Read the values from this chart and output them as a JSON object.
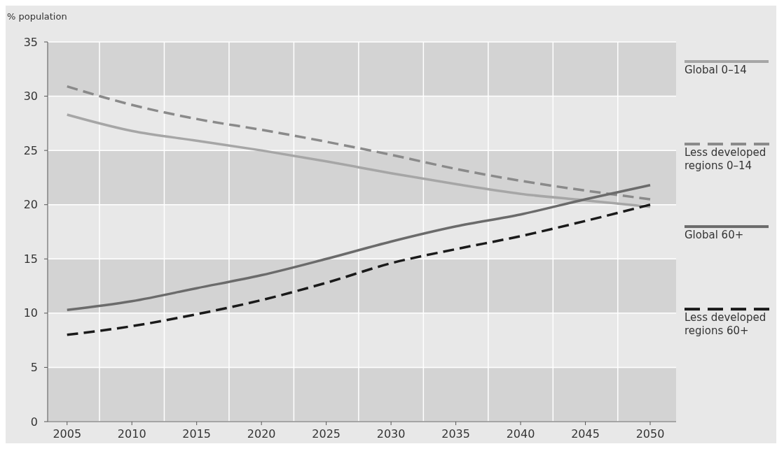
{
  "chart_data": {
    "type": "line",
    "ylabel": "% population",
    "x": [
      2005,
      2010,
      2015,
      2020,
      2025,
      2030,
      2035,
      2040,
      2045,
      2050
    ],
    "xlim": [
      2003.5,
      2052
    ],
    "xticks": [
      2005,
      2010,
      2015,
      2020,
      2025,
      2030,
      2035,
      2040,
      2045,
      2050
    ],
    "ylim": [
      0,
      35
    ],
    "yticks": [
      0,
      5,
      10,
      15,
      20,
      25,
      30,
      35
    ],
    "grid": true,
    "legend": "right",
    "series": [
      {
        "name": "Global 0–14",
        "color": "#a6a6a6",
        "line_style": "solid",
        "values": [
          28.3,
          26.8,
          25.9,
          25.0,
          24.0,
          22.9,
          21.9,
          21.0,
          20.4,
          19.8
        ]
      },
      {
        "name": "Less developed regions 0–14",
        "color": "#8a8a8a",
        "line_style": "dashed",
        "values": [
          30.9,
          29.2,
          27.9,
          26.9,
          25.8,
          24.6,
          23.3,
          22.2,
          21.3,
          20.5
        ]
      },
      {
        "name": "Global 60+",
        "color": "#6b6b6b",
        "line_style": "solid",
        "values": [
          10.3,
          11.1,
          12.3,
          13.5,
          15.0,
          16.6,
          18.0,
          19.1,
          20.5,
          21.8
        ]
      },
      {
        "name": "Less developed regions 60+",
        "color": "#1a1a1a",
        "line_style": "dashed",
        "values": [
          8.0,
          8.8,
          9.9,
          11.2,
          12.8,
          14.6,
          15.9,
          17.1,
          18.5,
          20.0
        ]
      }
    ]
  }
}
